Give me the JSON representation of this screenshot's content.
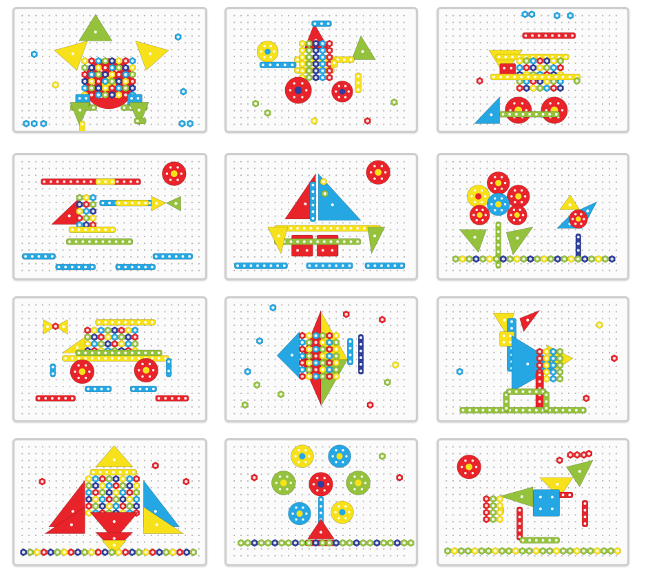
{
  "image": {
    "subject": "mosaic-pegboard-patterns",
    "boards": [
      {
        "pattern": "turtle"
      },
      {
        "pattern": "bulldozer"
      },
      {
        "pattern": "train"
      },
      {
        "pattern": "helicopter"
      },
      {
        "pattern": "sailboat"
      },
      {
        "pattern": "flower-and-pinwheel"
      },
      {
        "pattern": "car"
      },
      {
        "pattern": "fish"
      },
      {
        "pattern": "bird"
      },
      {
        "pattern": "penguin"
      },
      {
        "pattern": "ferris-wheel"
      },
      {
        "pattern": "dog"
      }
    ],
    "colors": {
      "red": "#e8242a",
      "yellow": "#f7e11a",
      "blue": "#25a7e4",
      "green": "#95c23d",
      "navy": "#2e3e9c",
      "white": "#ffffff",
      "hole": "#b9b9b9"
    }
  }
}
